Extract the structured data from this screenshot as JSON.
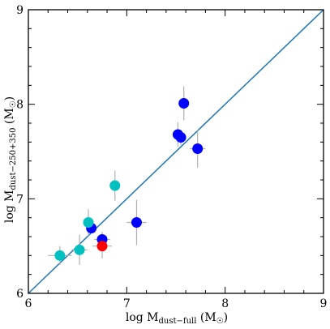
{
  "chart_data": {
    "type": "scatter",
    "xlabel": "log M_dust−full (M☉)",
    "ylabel": "log M_dust−250+350 (M☉)",
    "xlim": [
      6,
      9
    ],
    "ylim": [
      6,
      9
    ],
    "x_ticks": [
      6,
      7,
      8,
      9
    ],
    "y_ticks": [
      6,
      7,
      8,
      9
    ],
    "x_tick_labels": [
      "6",
      "7",
      "8",
      "9"
    ],
    "y_tick_labels": [
      "6",
      "7",
      "8",
      "9"
    ],
    "grid": false,
    "reference_line": {
      "x": [
        6,
        9
      ],
      "y": [
        6,
        9
      ],
      "color": "#1f77b4"
    },
    "errorbar_color": "#b0b0b0",
    "series": [
      {
        "color": "#0000ff",
        "points": [
          {
            "x": 7.58,
            "y": 8.01,
            "xerr": 0.0,
            "yerr": 0.18
          },
          {
            "x": 7.52,
            "y": 7.68,
            "xerr": 0.05,
            "yerr": 0.13
          },
          {
            "x": 7.55,
            "y": 7.65,
            "xerr": 0.04,
            "yerr": 0.08
          },
          {
            "x": 7.72,
            "y": 7.53,
            "xerr": 0.08,
            "yerr": 0.2
          },
          {
            "x": 7.1,
            "y": 6.75,
            "xerr": 0.1,
            "yerr": 0.24
          },
          {
            "x": 6.64,
            "y": 6.69,
            "xerr": 0.05,
            "yerr": 0.06
          },
          {
            "x": 6.75,
            "y": 6.57,
            "xerr": 0.08,
            "yerr": 0.08
          }
        ]
      },
      {
        "color": "#ff0000",
        "points": [
          {
            "x": 6.75,
            "y": 6.5,
            "xerr": 0.1,
            "yerr": 0.13
          }
        ]
      },
      {
        "color": "#00c0c0",
        "points": [
          {
            "x": 6.88,
            "y": 7.14,
            "xerr": 0.03,
            "yerr": 0.16
          },
          {
            "x": 6.61,
            "y": 6.75,
            "xerr": 0.04,
            "yerr": 0.14
          },
          {
            "x": 6.52,
            "y": 6.46,
            "xerr": 0.08,
            "yerr": 0.16
          },
          {
            "x": 6.32,
            "y": 6.4,
            "xerr": 0.12,
            "yerr": 0.1
          }
        ]
      }
    ]
  }
}
